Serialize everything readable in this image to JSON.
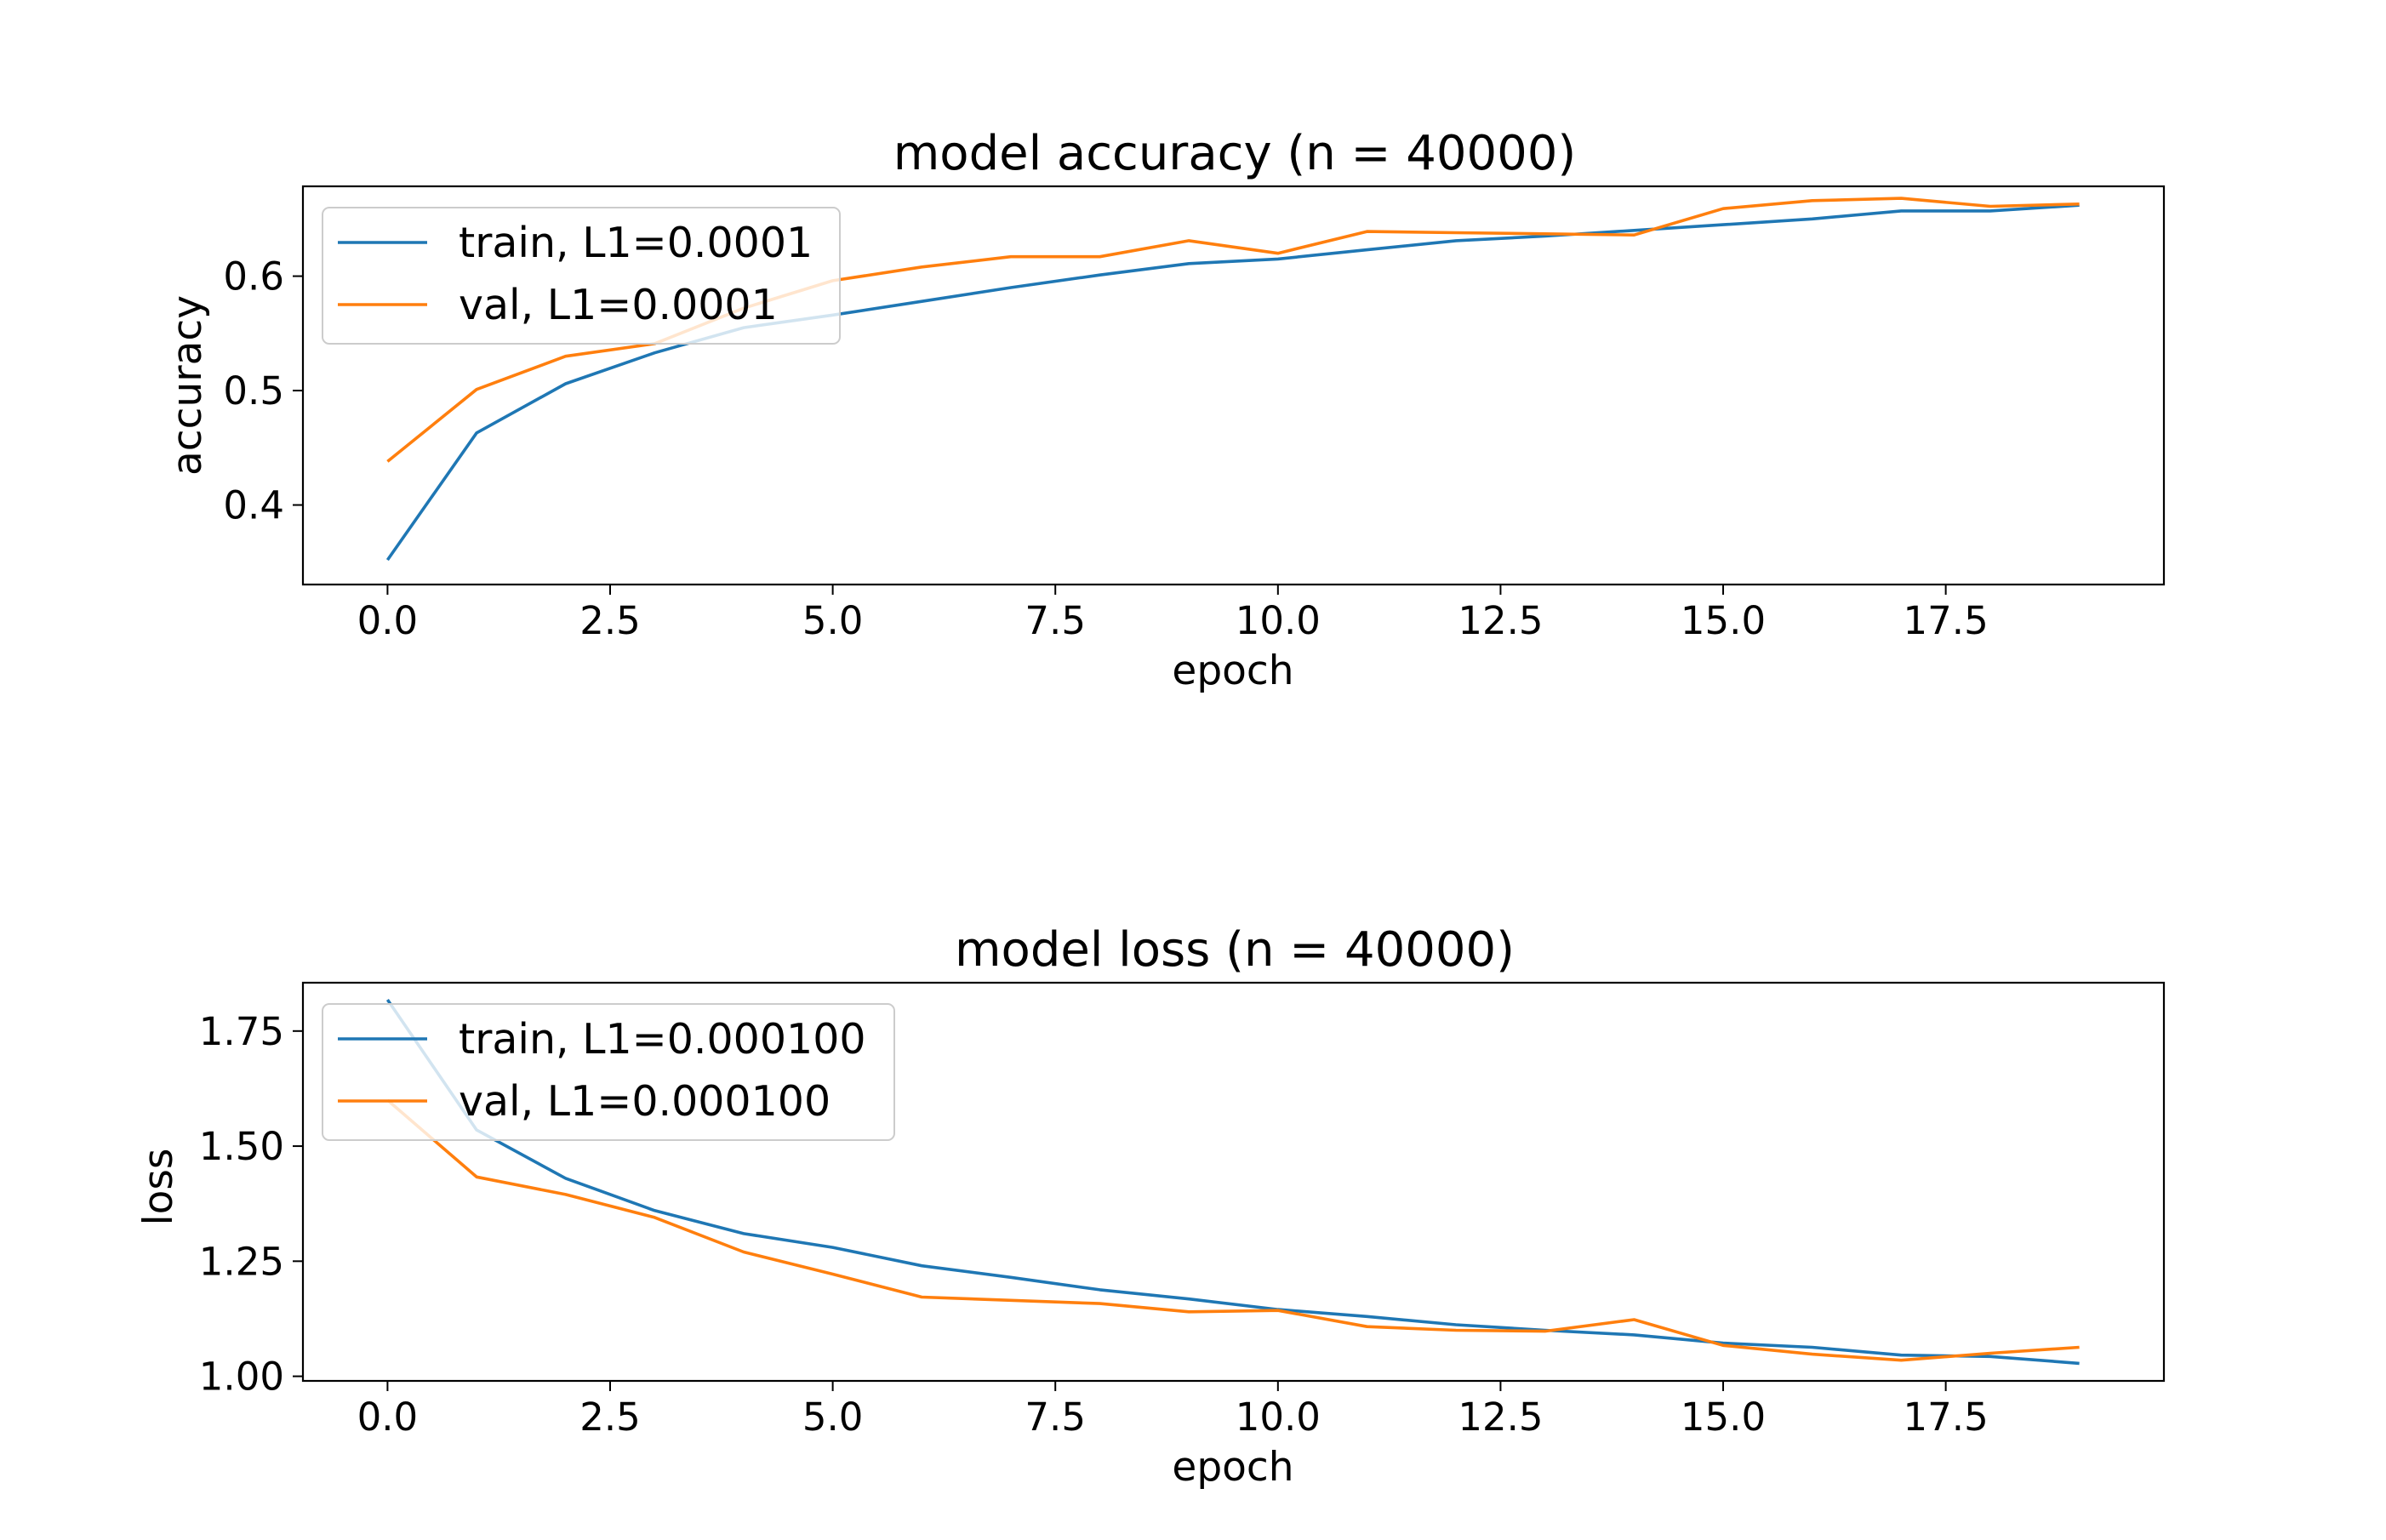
{
  "chart_data": [
    {
      "type": "line",
      "title": "model accuracy (n = 40000)",
      "xlabel": "epoch",
      "ylabel": "accuracy",
      "xlim": [
        -0.95,
        19.95
      ],
      "ylim": [
        0.3305,
        0.6785
      ],
      "xticks": [
        0.0,
        2.5,
        5.0,
        7.5,
        10.0,
        12.5,
        15.0,
        17.5
      ],
      "xtick_labels": [
        "0.0",
        "2.5",
        "5.0",
        "7.5",
        "10.0",
        "12.5",
        "15.0",
        "17.5"
      ],
      "yticks": [
        0.4,
        0.5,
        0.6
      ],
      "ytick_labels": [
        "0.4",
        "0.5",
        "0.6"
      ],
      "grid": false,
      "legend_position": "upper left",
      "x": [
        0,
        1,
        2,
        3,
        4,
        5,
        6,
        7,
        8,
        9,
        10,
        11,
        12,
        13,
        14,
        15,
        16,
        17,
        18,
        19
      ],
      "series": [
        {
          "name": "train, L1=0.0001",
          "color": "#1f77b4",
          "values": [
            0.352,
            0.463,
            0.506,
            0.533,
            0.555,
            0.566,
            0.578,
            0.59,
            0.601,
            0.611,
            0.615,
            0.623,
            0.631,
            0.635,
            0.64,
            0.645,
            0.65,
            0.657,
            0.657,
            0.662
          ]
        },
        {
          "name": "val, L1=0.0001",
          "color": "#ff7f0e",
          "values": [
            0.438,
            0.501,
            0.53,
            0.541,
            0.572,
            0.596,
            0.608,
            0.617,
            0.617,
            0.631,
            0.62,
            0.639,
            0.638,
            0.637,
            0.636,
            0.659,
            0.666,
            0.668,
            0.661,
            0.663
          ]
        }
      ]
    },
    {
      "type": "line",
      "title": "model loss (n = 40000)",
      "xlabel": "epoch",
      "ylabel": "loss",
      "xlim": [
        -0.95,
        19.95
      ],
      "ylim": [
        0.99,
        1.855
      ],
      "xticks": [
        0.0,
        2.5,
        5.0,
        7.5,
        10.0,
        12.5,
        15.0,
        17.5
      ],
      "xtick_labels": [
        "0.0",
        "2.5",
        "5.0",
        "7.5",
        "10.0",
        "12.5",
        "15.0",
        "17.5"
      ],
      "yticks": [
        1.0,
        1.25,
        1.5,
        1.75
      ],
      "ytick_labels": [
        "1.00",
        "1.25",
        "1.50",
        "1.75"
      ],
      "grid": false,
      "legend_position": "upper left",
      "x": [
        0,
        1,
        2,
        3,
        4,
        5,
        6,
        7,
        8,
        9,
        10,
        11,
        12,
        13,
        14,
        15,
        16,
        17,
        18,
        19
      ],
      "series": [
        {
          "name": "train, L1=0.000100",
          "color": "#1f77b4",
          "values": [
            1.818,
            1.535,
            1.43,
            1.36,
            1.31,
            1.28,
            1.24,
            1.215,
            1.188,
            1.168,
            1.145,
            1.13,
            1.112,
            1.1,
            1.09,
            1.072,
            1.063,
            1.046,
            1.043,
            1.028
          ]
        },
        {
          "name": "val, L1=0.000100",
          "color": "#ff7f0e",
          "values": [
            1.6,
            1.433,
            1.395,
            1.345,
            1.27,
            1.222,
            1.172,
            1.165,
            1.158,
            1.14,
            1.143,
            1.108,
            1.1,
            1.098,
            1.123,
            1.067,
            1.048,
            1.035,
            1.05,
            1.063
          ]
        }
      ]
    }
  ]
}
